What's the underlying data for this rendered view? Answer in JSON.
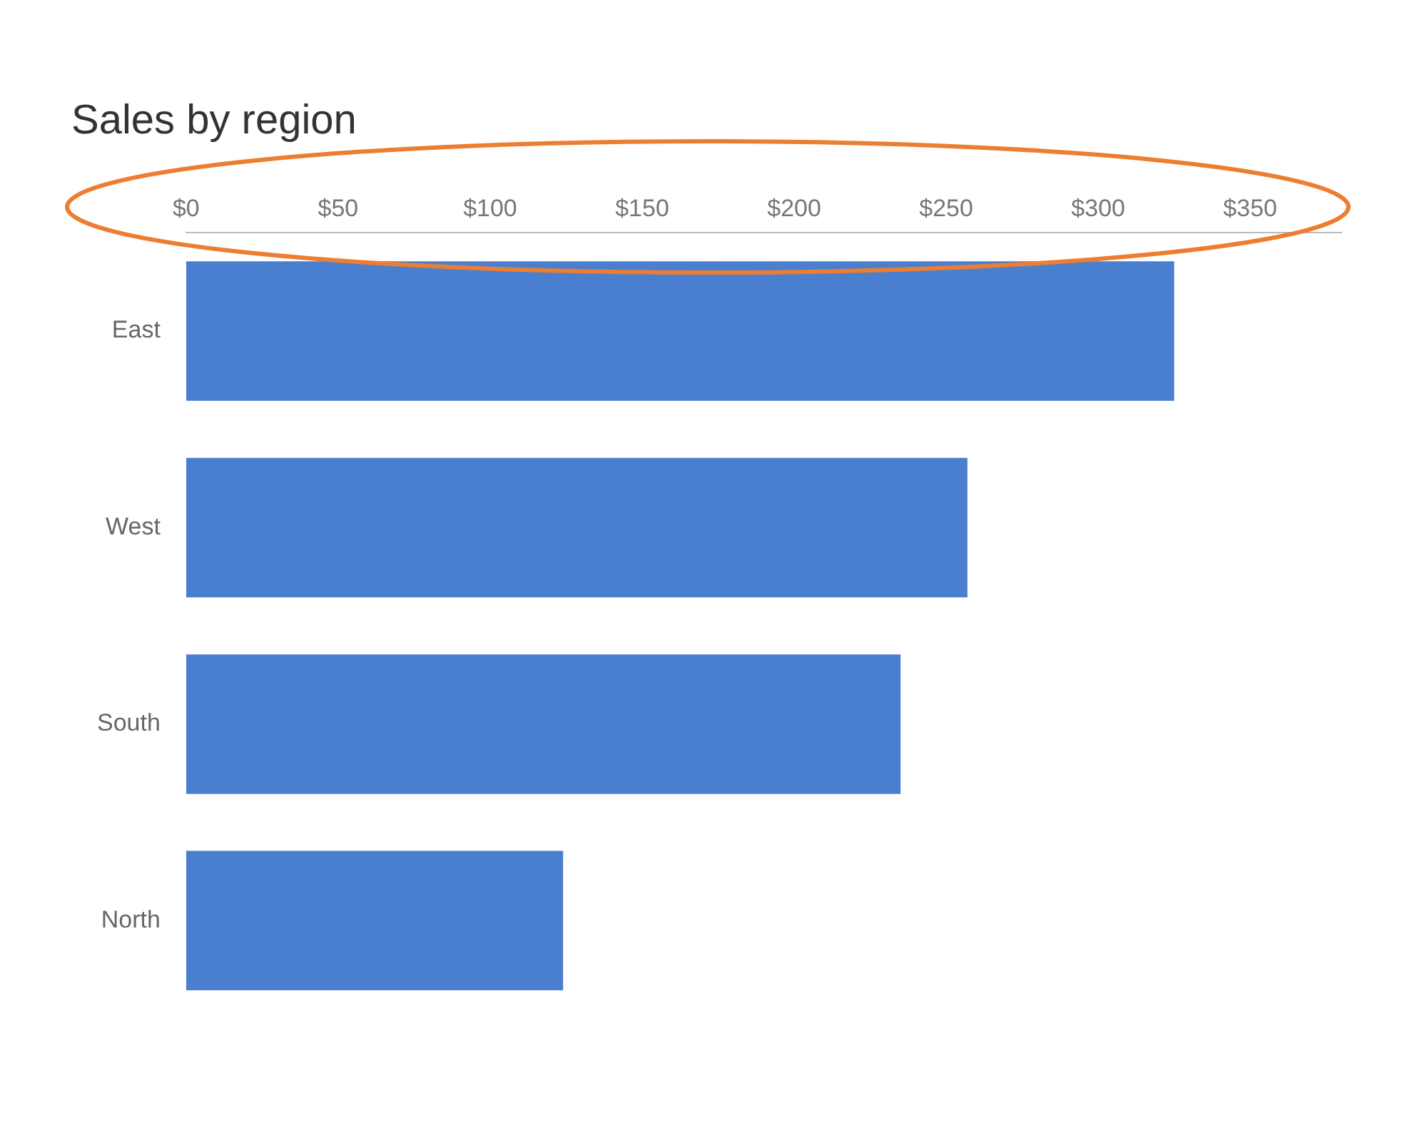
{
  "chart_data": {
    "type": "bar",
    "orientation": "horizontal",
    "title": "Sales by region",
    "categories": [
      "East",
      "West",
      "South",
      "North"
    ],
    "values": [
      325,
      257,
      235,
      124
    ],
    "color": "#4a7fd0",
    "xlim": [
      0,
      380
    ],
    "xticks": [
      {
        "value": 0,
        "label": "$0"
      },
      {
        "value": 50,
        "label": "$50"
      },
      {
        "value": 100,
        "label": "$100"
      },
      {
        "value": 150,
        "label": "$150"
      },
      {
        "value": 200,
        "label": "$200"
      },
      {
        "value": 250,
        "label": "$250"
      },
      {
        "value": 300,
        "label": "$300"
      },
      {
        "value": 350,
        "label": "$350"
      }
    ],
    "grid": false,
    "legend": false
  }
}
